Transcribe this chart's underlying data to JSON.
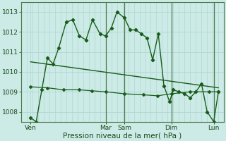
{
  "bg_color": "#cceae6",
  "grid_color": "#b0d8d4",
  "line_color": "#1a5c1a",
  "ylim": [
    1007.5,
    1013.5
  ],
  "yticks": [
    1008,
    1009,
    1010,
    1011,
    1012,
    1013
  ],
  "xlabel": "Pression niveau de la mer( hPa )",
  "xlim": [
    0,
    216
  ],
  "day_labels": [
    "Ven",
    "Mar",
    "Sam",
    "Dim",
    "Lun"
  ],
  "day_positions": [
    10,
    90,
    110,
    160,
    205
  ],
  "vline_positions": [
    90,
    110,
    160,
    205
  ],
  "series1_x": [
    10,
    16,
    22,
    28,
    34,
    40,
    48,
    55,
    62,
    69,
    76,
    84,
    90,
    96,
    102,
    110,
    116,
    122,
    128,
    134,
    140,
    146,
    152,
    158,
    162,
    168,
    174,
    180,
    186,
    192,
    198,
    205,
    210
  ],
  "series1_y": [
    1007.7,
    1007.5,
    1009.1,
    1010.7,
    1010.4,
    1011.2,
    1012.5,
    1012.6,
    1011.8,
    1011.6,
    1012.6,
    1011.9,
    1011.8,
    1012.2,
    1013.0,
    1012.7,
    1012.1,
    1012.1,
    1011.9,
    1011.7,
    1010.6,
    1011.9,
    1009.3,
    1008.5,
    1009.1,
    1009.0,
    1008.9,
    1008.7,
    1009.0,
    1009.4,
    1008.0,
    1007.5,
    1009.0
  ],
  "series2_x": [
    10,
    28,
    45,
    62,
    75,
    90,
    110,
    130,
    145,
    160,
    180,
    200,
    210
  ],
  "series2_y": [
    1009.25,
    1009.2,
    1009.1,
    1009.1,
    1009.05,
    1009.0,
    1008.9,
    1008.85,
    1008.8,
    1008.9,
    1009.0,
    1009.0,
    1009.0
  ],
  "trend_x": [
    10,
    210
  ],
  "trend_y": [
    1010.5,
    1009.2
  ]
}
